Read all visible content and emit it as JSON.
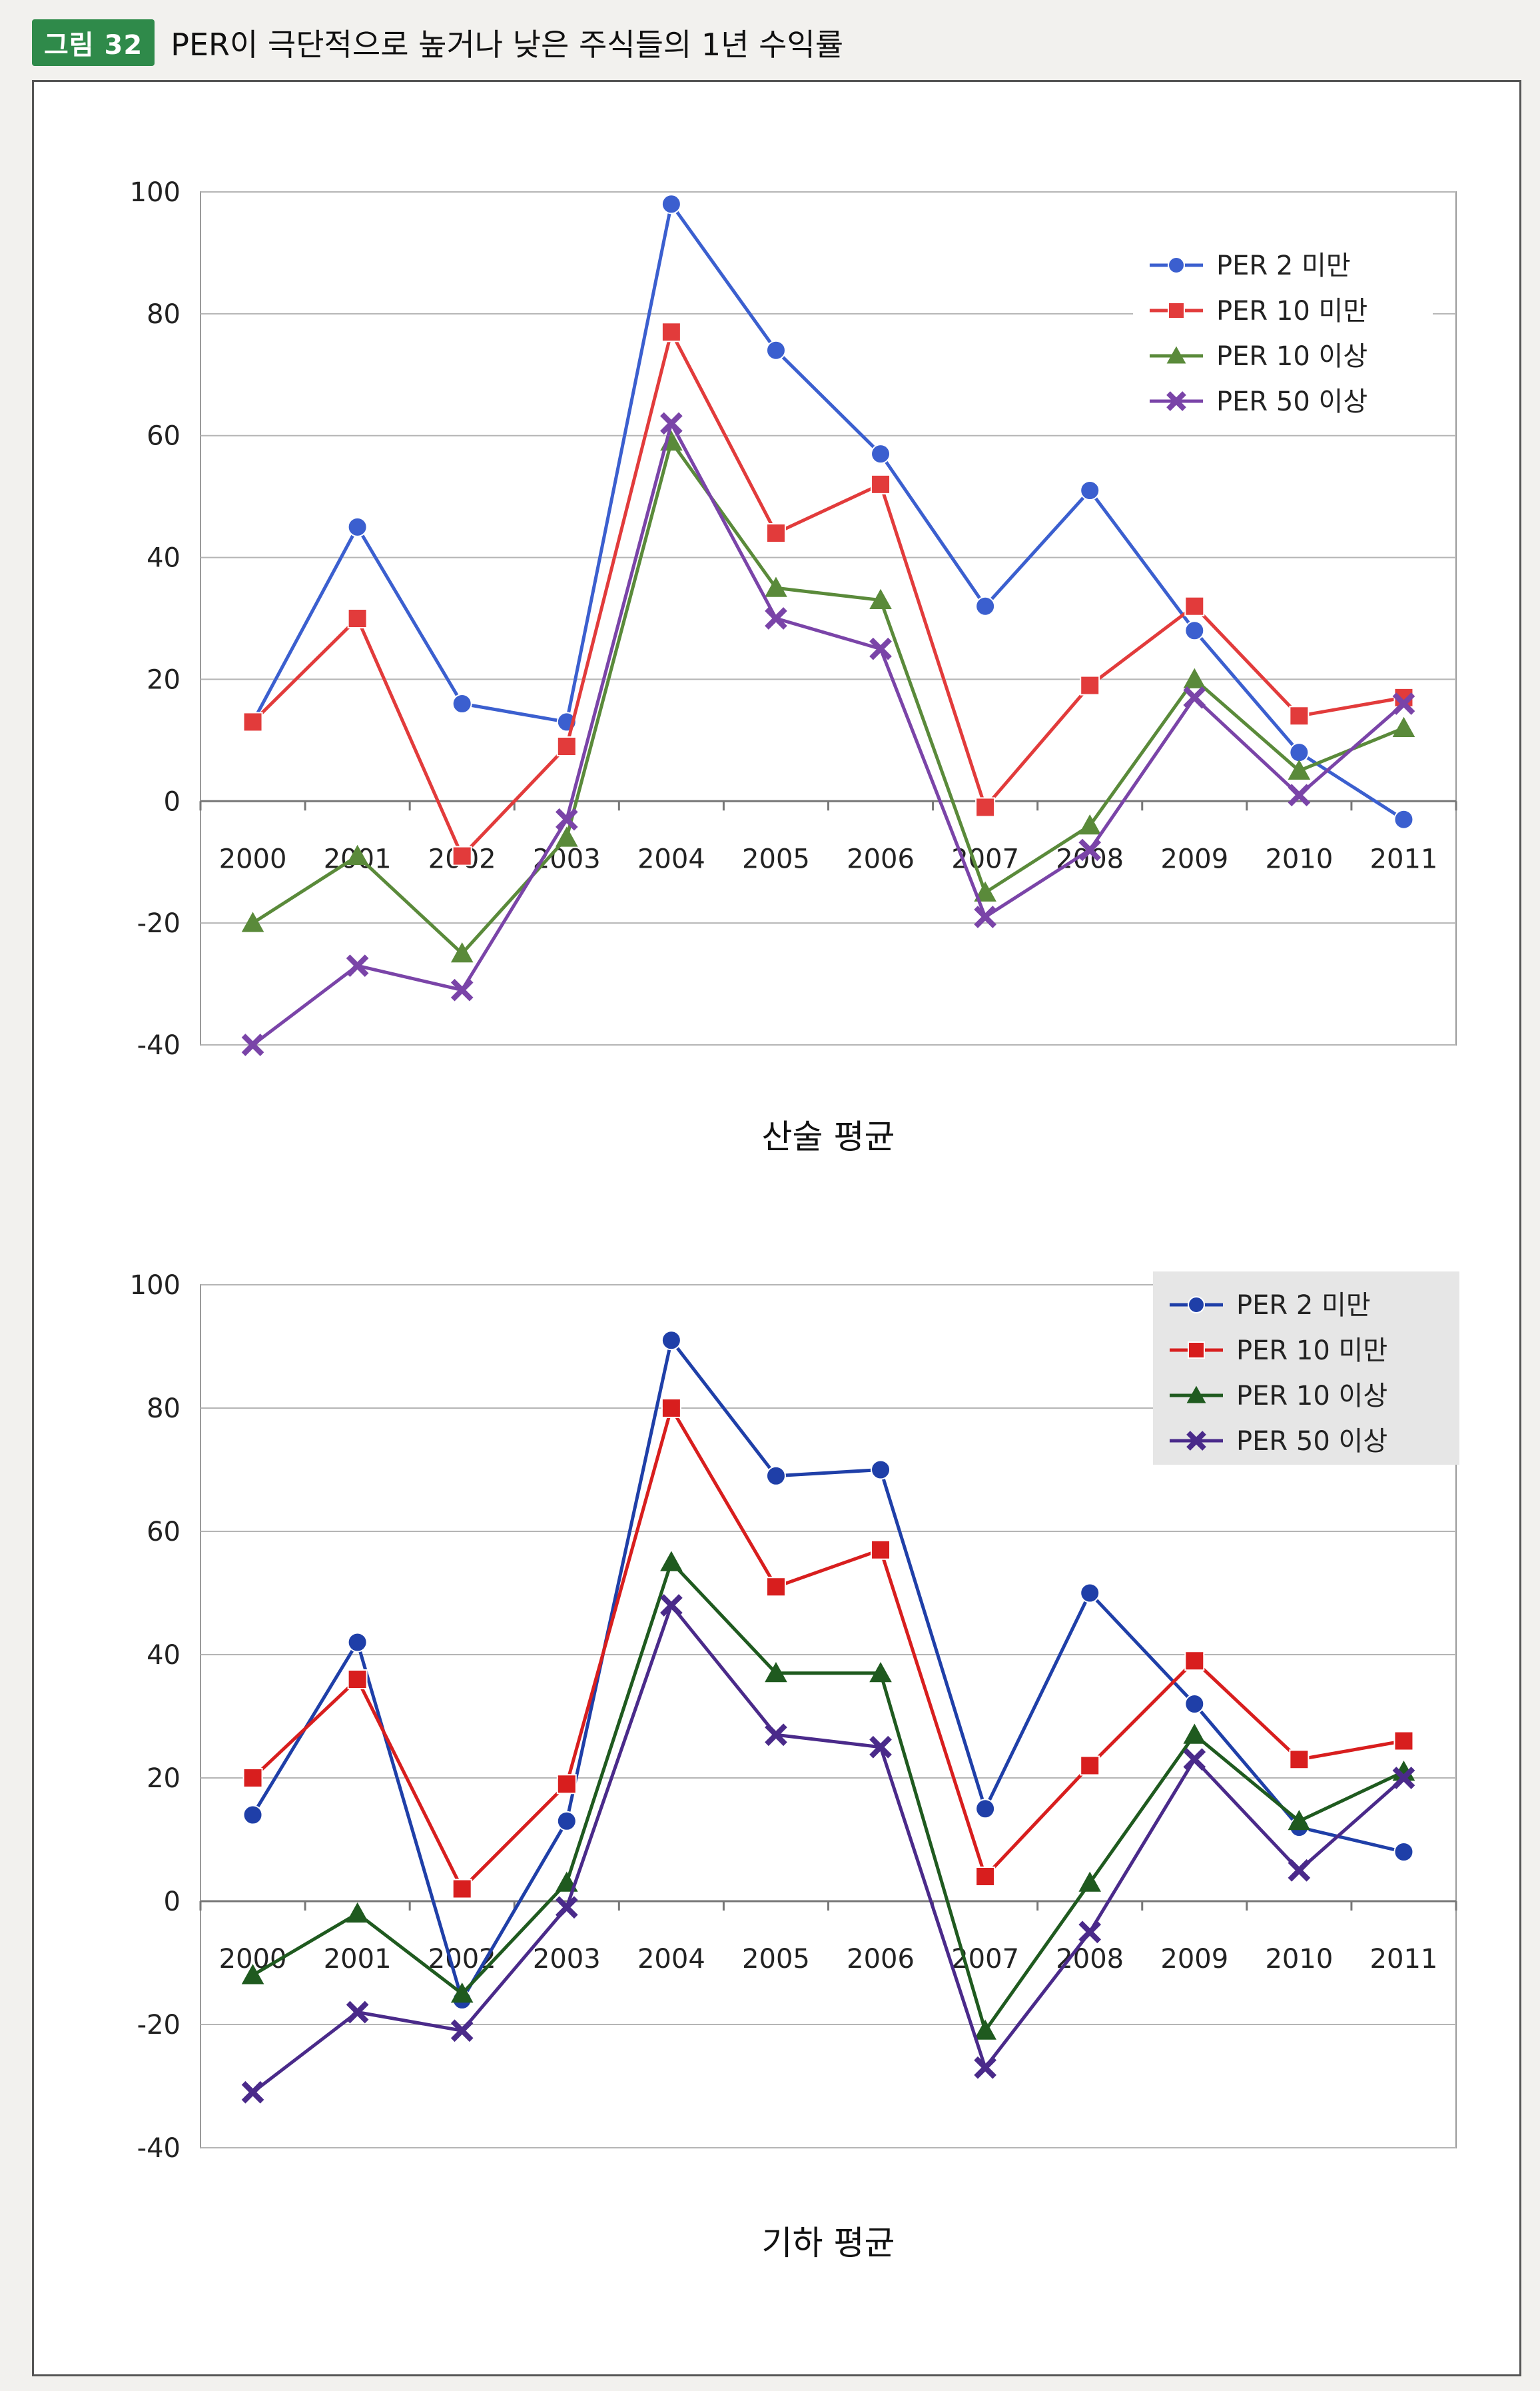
{
  "figure": {
    "badge": "그림 32",
    "title": "PER이 극단적으로 높거나 낮은 주식들의 1년 수익률"
  },
  "chart_data": [
    {
      "type": "line",
      "title": "산술 평균",
      "categories": [
        "2000",
        "2001",
        "2002",
        "2003",
        "2004",
        "2005",
        "2006",
        "2007",
        "2008",
        "2009",
        "2010",
        "2011"
      ],
      "ylim": [
        -40,
        100
      ],
      "yticks": [
        "100",
        "80",
        "60",
        "40",
        "20",
        "0",
        "-20",
        "-40"
      ],
      "legend_position": "top-right",
      "grid": true,
      "series": [
        {
          "name": "PER  2 미만",
          "color": "#3b5fcf",
          "marker": "circle",
          "values": [
            13,
            45,
            16,
            13,
            98,
            74,
            57,
            32,
            51,
            28,
            8,
            -3
          ]
        },
        {
          "name": "PER 10 미만",
          "color": "#e23b3b",
          "marker": "square",
          "values": [
            13,
            30,
            -9,
            9,
            77,
            44,
            52,
            -1,
            19,
            32,
            14,
            17
          ]
        },
        {
          "name": "PER 10 이상",
          "color": "#5a8a3a",
          "marker": "triangle",
          "values": [
            -20,
            -9,
            -25,
            -6,
            59,
            35,
            33,
            -15,
            -4,
            20,
            5,
            12
          ]
        },
        {
          "name": "PER 50 이상",
          "color": "#7a44a8",
          "marker": "x",
          "values": [
            -40,
            -27,
            -31,
            -3,
            62,
            30,
            25,
            -19,
            -8,
            17,
            1,
            16
          ]
        }
      ]
    },
    {
      "type": "line",
      "title": "기하 평균",
      "categories": [
        "2000",
        "2001",
        "2002",
        "2003",
        "2004",
        "2005",
        "2006",
        "2007",
        "2008",
        "2009",
        "2010",
        "2011"
      ],
      "ylim": [
        -40,
        100
      ],
      "yticks": [
        "100",
        "80",
        "60",
        "40",
        "20",
        "0",
        "-20",
        "-40"
      ],
      "legend_position": "top-right",
      "grid": true,
      "series": [
        {
          "name": "PER  2 미만",
          "color": "#1f3fa8",
          "marker": "circle",
          "values": [
            14,
            42,
            -16,
            13,
            91,
            69,
            70,
            15,
            50,
            32,
            12,
            8
          ]
        },
        {
          "name": "PER 10 미만",
          "color": "#d81e1e",
          "marker": "square",
          "values": [
            20,
            36,
            2,
            19,
            80,
            51,
            57,
            4,
            22,
            39,
            23,
            26
          ]
        },
        {
          "name": "PER 10 이상",
          "color": "#1f5a1f",
          "marker": "triangle",
          "values": [
            -12,
            -2,
            -15,
            3,
            55,
            37,
            37,
            -21,
            3,
            27,
            13,
            21
          ]
        },
        {
          "name": "PER 50 이상",
          "color": "#4a2a8a",
          "marker": "x",
          "values": [
            -31,
            -18,
            -21,
            -1,
            48,
            27,
            25,
            -27,
            -5,
            23,
            5,
            20
          ]
        }
      ]
    }
  ]
}
